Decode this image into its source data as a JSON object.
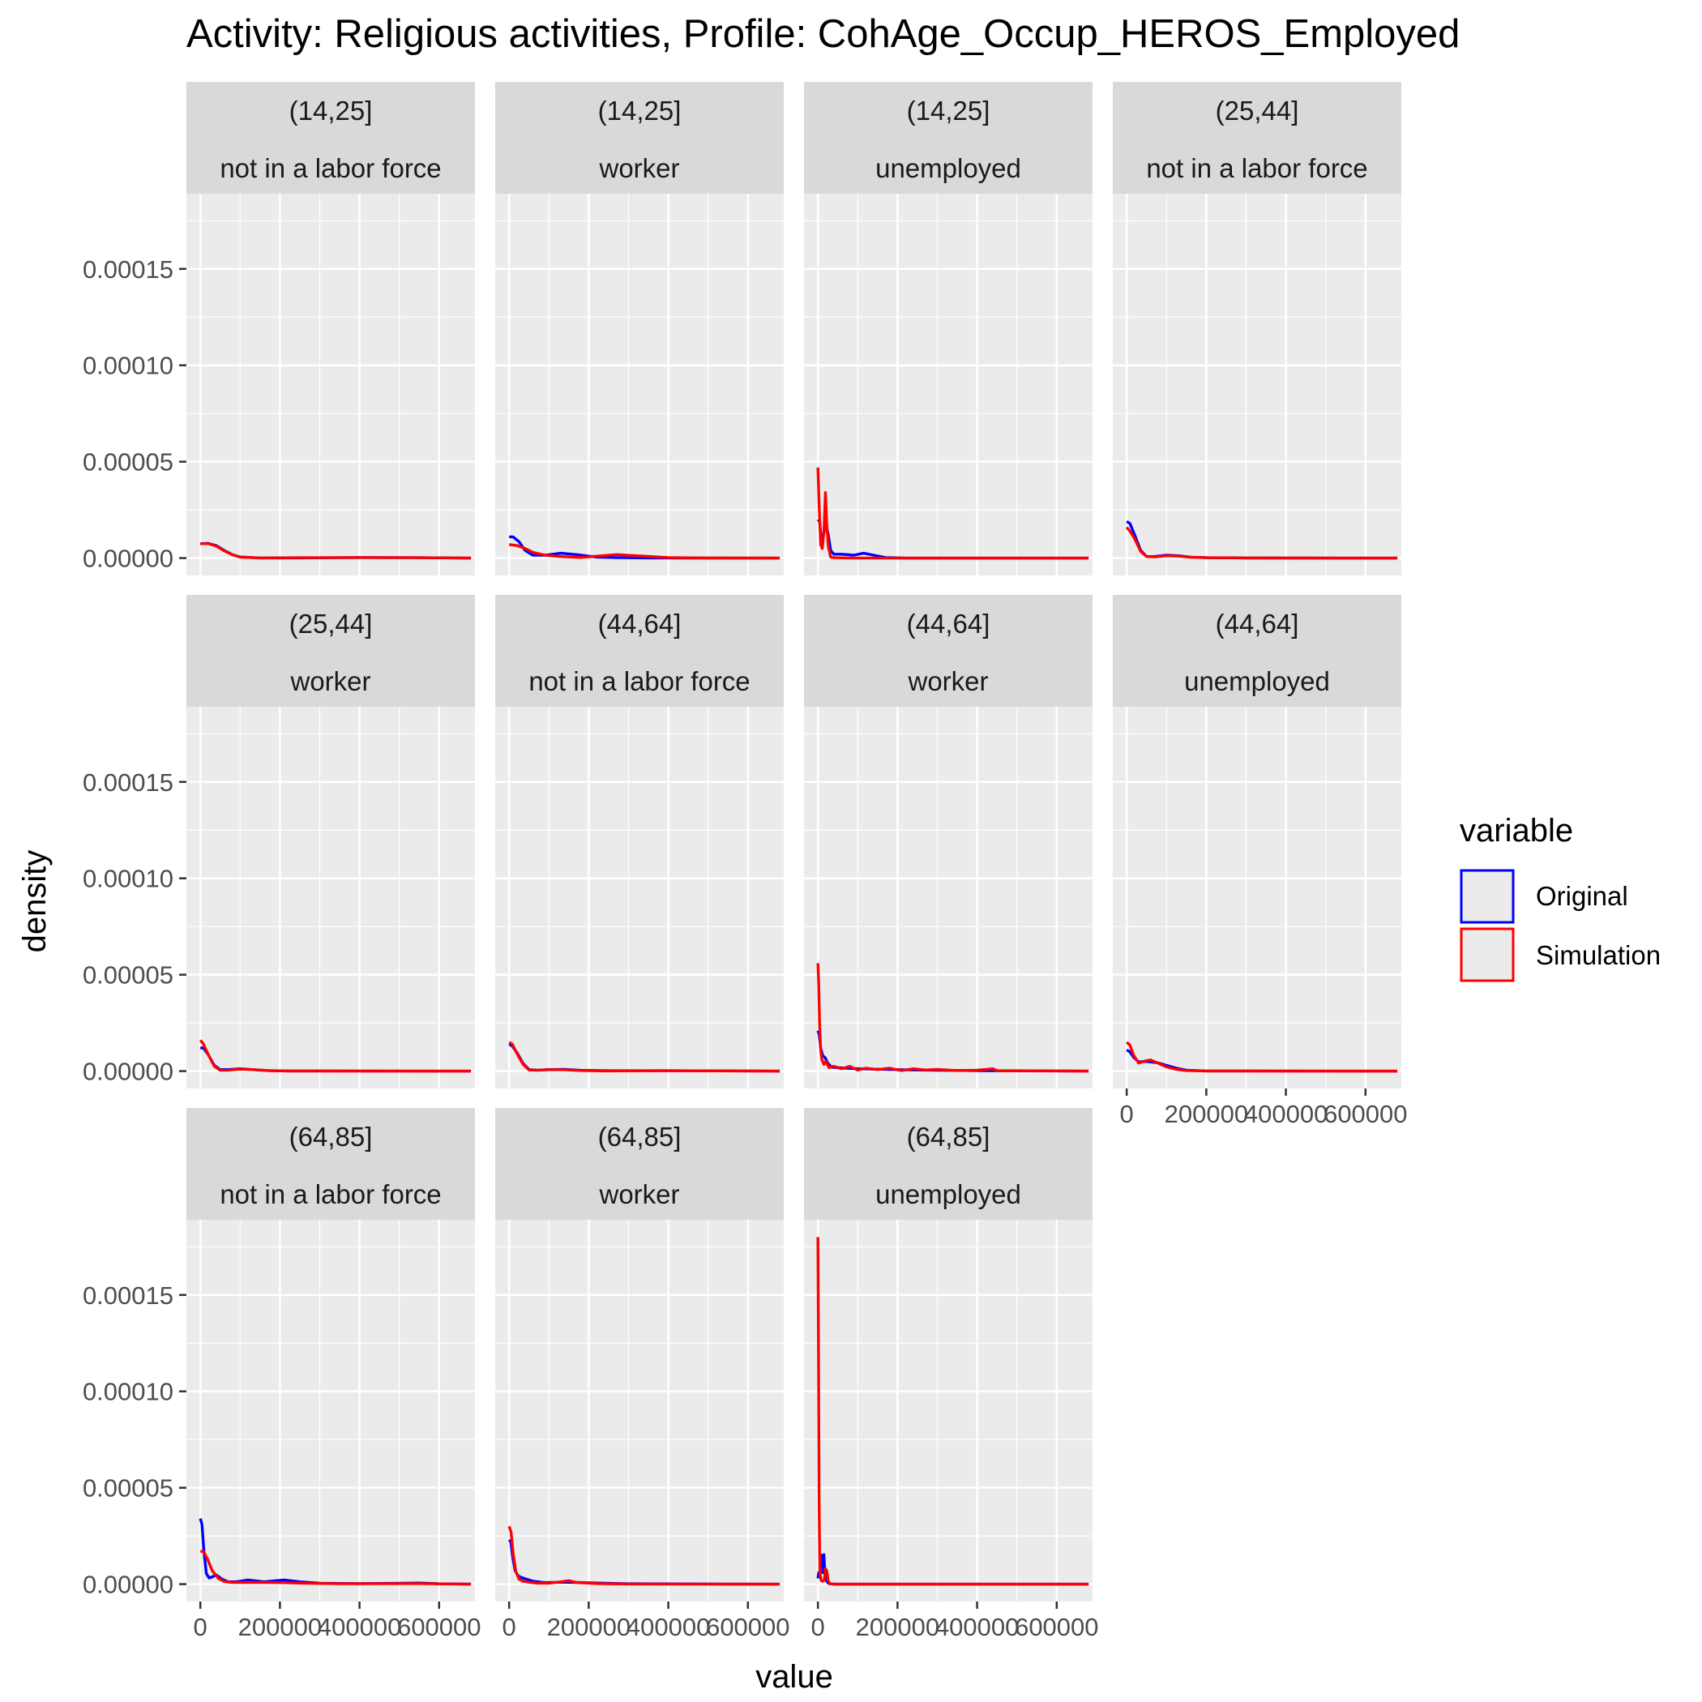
{
  "chart_data": {
    "type": "line",
    "title": "Activity: Religious activities, Profile: CohAge_Occup_HEROS_Employed",
    "xlabel": "value",
    "ylabel": "density",
    "xlim": [
      -35000,
      690000
    ],
    "ylim": [
      -9e-06,
      0.000189
    ],
    "x_ticks": [
      0,
      200000,
      400000,
      600000
    ],
    "x_tick_labels": [
      "0",
      "200000",
      "400000",
      "600000"
    ],
    "y_ticks": [
      0,
      5e-05,
      0.0001,
      0.00015
    ],
    "y_tick_labels": [
      "0.00000",
      "0.00005",
      "0.00010",
      "0.00015"
    ],
    "grid": true,
    "legend": {
      "title": "variable",
      "placement": "right",
      "entries": [
        {
          "name": "Original",
          "color": "#0000ff"
        },
        {
          "name": "Simulation",
          "color": "#ff0000"
        }
      ]
    },
    "panels": [
      {
        "age": "(14,25]",
        "occupation": "not in a labor force",
        "series": [
          {
            "name": "Original",
            "x": [
              0,
              20000,
              40000,
              60000,
              80000,
              100000,
              150000,
              250000,
              400000,
              550000,
              680000
            ],
            "y": [
              7.5e-06,
              7.6e-06,
              6.5e-06,
              4e-06,
              1.8e-06,
              6e-07,
              1e-07,
              1e-07,
              3e-07,
              2e-07,
              0
            ]
          },
          {
            "name": "Simulation",
            "x": [
              0,
              20000,
              40000,
              60000,
              80000,
              100000,
              150000,
              250000,
              400000,
              550000,
              680000
            ],
            "y": [
              7.5e-06,
              7.5e-06,
              6.2e-06,
              3.8e-06,
              1.7e-06,
              5e-07,
              1e-07,
              2e-07,
              3e-07,
              2e-07,
              0
            ]
          }
        ]
      },
      {
        "age": "(14,25]",
        "occupation": "worker",
        "series": [
          {
            "name": "Original",
            "x": [
              0,
              10000,
              25000,
              40000,
              60000,
              90000,
              130000,
              170000,
              220000,
              280000,
              350000,
              450000,
              680000
            ],
            "y": [
              1.1e-05,
              1.1e-05,
              8.5e-06,
              4e-06,
              1.5e-06,
              1.5e-06,
              2.5e-06,
              1.8e-06,
              5e-07,
              2e-07,
              1e-07,
              0,
              0
            ]
          },
          {
            "name": "Simulation",
            "x": [
              0,
              20000,
              40000,
              60000,
              90000,
              130000,
              180000,
              220000,
              270000,
              320000,
              400000,
              500000,
              680000
            ],
            "y": [
              7e-06,
              6.5e-06,
              5e-06,
              3e-06,
              1.5e-06,
              8e-07,
              3e-07,
              1e-06,
              1.8e-06,
              1.2e-06,
              3e-07,
              1e-07,
              0
            ]
          }
        ]
      },
      {
        "age": "(14,25]",
        "occupation": "unemployed",
        "series": [
          {
            "name": "Original",
            "x": [
              0,
              4000,
              9000,
              14000,
              20000,
              26000,
              32000,
              40000,
              60000,
              90000,
              115000,
              140000,
              170000,
              220000,
              680000
            ],
            "y": [
              2e-05,
              1.9e-05,
              9e-06,
              1.2e-05,
              1.8e-05,
              1.2e-05,
              4e-06,
              2e-06,
              2e-06,
              1.5e-06,
              2.5e-06,
              1.5e-06,
              3e-07,
              0,
              0
            ]
          },
          {
            "name": "Simulation",
            "x": [
              0,
              3000,
              7000,
              11000,
              15000,
              19000,
              22000,
              26000,
              32000,
              40000,
              80000,
              680000
            ],
            "y": [
              4.7e-05,
              2.7e-05,
              7e-06,
              5e-06,
              1.4e-05,
              3.4e-05,
              1.8e-05,
              6e-06,
              6e-07,
              2e-07,
              0,
              0
            ]
          }
        ]
      },
      {
        "age": "(25,44]",
        "occupation": "not in a labor force",
        "series": [
          {
            "name": "Original",
            "x": [
              0,
              8000,
              20000,
              35000,
              50000,
              70000,
              100000,
              130000,
              160000,
              200000,
              300000,
              680000
            ],
            "y": [
              1.9e-05,
              1.8e-05,
              1.2e-05,
              4e-06,
              8e-07,
              8e-07,
              1.5e-06,
              1.2e-06,
              5e-07,
              2e-07,
              1e-07,
              0
            ]
          },
          {
            "name": "Simulation",
            "x": [
              0,
              8000,
              20000,
              35000,
              50000,
              70000,
              100000,
              130000,
              160000,
              200000,
              300000,
              680000
            ],
            "y": [
              1.6e-05,
              1.4e-05,
              1e-05,
              3.5e-06,
              8e-07,
              6e-07,
              1.2e-06,
              1e-06,
              4e-07,
              2e-07,
              1e-07,
              0
            ]
          }
        ]
      },
      {
        "age": "(25,44]",
        "occupation": "worker",
        "series": [
          {
            "name": "Original",
            "x": [
              0,
              8000,
              20000,
              35000,
              50000,
              70000,
              100000,
              130000,
              170000,
              220000,
              300000,
              680000
            ],
            "y": [
              1.2e-05,
              1.2e-05,
              8.5e-06,
              3e-06,
              8e-07,
              8e-07,
              1.2e-06,
              8e-07,
              3e-07,
              1e-07,
              1e-07,
              0
            ]
          },
          {
            "name": "Simulation",
            "x": [
              0,
              8000,
              20000,
              35000,
              50000,
              70000,
              100000,
              130000,
              170000,
              220000,
              300000,
              680000
            ],
            "y": [
              1.6e-05,
              1.4e-05,
              8.5e-06,
              2.5e-06,
              4e-07,
              5e-07,
              1e-06,
              8e-07,
              3e-07,
              1e-07,
              1e-07,
              0
            ]
          }
        ]
      },
      {
        "age": "(44,64]",
        "occupation": "not in a labor force",
        "series": [
          {
            "name": "Original",
            "x": [
              0,
              8000,
              20000,
              35000,
              50000,
              70000,
              100000,
              140000,
              180000,
              250000,
              400000,
              680000
            ],
            "y": [
              1.4e-05,
              1.3e-05,
              9.5e-06,
              4e-06,
              8e-07,
              5e-07,
              8e-07,
              9e-07,
              4e-07,
              2e-07,
              2e-07,
              0
            ]
          },
          {
            "name": "Simulation",
            "x": [
              0,
              8000,
              20000,
              35000,
              50000,
              70000,
              100000,
              140000,
              180000,
              250000,
              400000,
              680000
            ],
            "y": [
              1.5e-05,
              1.4e-05,
              9e-06,
              3.5e-06,
              6e-07,
              4e-07,
              7e-07,
              7e-07,
              3e-07,
              1e-07,
              2e-07,
              0
            ]
          }
        ]
      },
      {
        "age": "(44,64]",
        "occupation": "worker",
        "series": [
          {
            "name": "Original",
            "x": [
              0,
              3000,
              7000,
              12000,
              18000,
              25000,
              35000,
              50000,
              70000,
              100000,
              140000,
              190000,
              240000,
              300000,
              400000,
              680000
            ],
            "y": [
              2.1e-05,
              1.9e-05,
              1.2e-05,
              8e-06,
              7e-06,
              4e-06,
              2e-06,
              1.8e-06,
              1.5e-06,
              1.2e-06,
              1e-06,
              8e-07,
              6e-07,
              4e-07,
              2e-07,
              0
            ]
          },
          {
            "name": "Simulation",
            "x": [
              0,
              2000,
              4000,
              7000,
              10000,
              15000,
              20000,
              28000,
              40000,
              60000,
              80000,
              100000,
              120000,
              150000,
              180000,
              210000,
              240000,
              270000,
              300000,
              350000,
              400000,
              440000,
              450000,
              500000,
              680000
            ],
            "y": [
              5.6e-05,
              4.5e-05,
              2.5e-05,
              1.1e-05,
              6e-06,
              3.5e-06,
              5e-06,
              1.8e-06,
              2.5e-06,
              1.2e-06,
              2.5e-06,
              5e-07,
              1.5e-06,
              8e-07,
              1.5e-06,
              3e-07,
              1.2e-06,
              6e-07,
              9e-07,
              3e-07,
              5e-07,
              1.2e-06,
              2e-07,
              2e-07,
              0
            ]
          }
        ]
      },
      {
        "age": "(44,64]",
        "occupation": "unemployed",
        "series": [
          {
            "name": "Original",
            "x": [
              0,
              8000,
              18000,
              30000,
              45000,
              60000,
              80000,
              100000,
              125000,
              150000,
              200000,
              680000
            ],
            "y": [
              1.1e-05,
              1e-05,
              7e-06,
              4.8e-06,
              5e-06,
              4.8e-06,
              4.2e-06,
              3e-06,
              1.5e-06,
              5e-07,
              1e-07,
              0
            ]
          },
          {
            "name": "Simulation",
            "x": [
              0,
              8000,
              18000,
              30000,
              45000,
              60000,
              80000,
              100000,
              125000,
              150000,
              200000,
              680000
            ],
            "y": [
              1.5e-05,
              1.35e-05,
              8e-06,
              4.2e-06,
              5.2e-06,
              5.8e-06,
              4e-06,
              2.2e-06,
              9e-07,
              3e-07,
              1e-07,
              0
            ]
          }
        ]
      },
      {
        "age": "(64,85]",
        "occupation": "not in a labor force",
        "series": [
          {
            "name": "Original",
            "x": [
              0,
              4000,
              9000,
              15000,
              22000,
              30000,
              40000,
              55000,
              70000,
              90000,
              120000,
              160000,
              210000,
              250000,
              300000,
              400000,
              550000,
              600000,
              680000
            ],
            "y": [
              3.4e-05,
              3.1e-05,
              1.7e-05,
              5.5e-06,
              3.2e-06,
              3.8e-06,
              4.8e-06,
              2.5e-06,
              1.2e-06,
              1.2e-06,
              2.2e-06,
              1.2e-06,
              2.2e-06,
              1.2e-06,
              5e-07,
              3e-07,
              6e-07,
              2e-07,
              0
            ]
          },
          {
            "name": "Simulation",
            "x": [
              0,
              8000,
              18000,
              30000,
              45000,
              60000,
              80000,
              110000,
              150000,
              200000,
              250000,
              350000,
              550000,
              680000
            ],
            "y": [
              1.7e-05,
              1.7e-05,
              1.3e-05,
              7e-06,
              3e-06,
              1.4e-06,
              9e-07,
              9e-07,
              9e-07,
              8e-07,
              5e-07,
              2e-07,
              3e-07,
              0
            ]
          }
        ]
      },
      {
        "age": "(64,85]",
        "occupation": "worker",
        "series": [
          {
            "name": "Original",
            "x": [
              0,
              4000,
              9000,
              15000,
              22000,
              30000,
              40000,
              60000,
              90000,
              130000,
              170000,
              220000,
              300000,
              680000
            ],
            "y": [
              2.3e-05,
              2.2e-05,
              1.4e-05,
              7e-06,
              4.5e-06,
              3.5e-06,
              2.8e-06,
              1.5e-06,
              8e-07,
              1e-06,
              9e-07,
              6e-07,
              2e-07,
              0
            ]
          },
          {
            "name": "Simulation",
            "x": [
              0,
              5000,
              10000,
              17000,
              25000,
              35000,
              50000,
              70000,
              100000,
              130000,
              150000,
              170000,
              220000,
              300000,
              680000
            ],
            "y": [
              3e-05,
              2.7e-05,
              1.6e-05,
              6.5e-06,
              2.5e-06,
              1.5e-06,
              1e-06,
              5e-07,
              5e-07,
              1.2e-06,
              1.8e-06,
              8e-07,
              3e-07,
              1e-07,
              0
            ]
          }
        ]
      },
      {
        "age": "(64,85]",
        "occupation": "unemployed",
        "series": [
          {
            "name": "Original",
            "x": [
              0,
              2000,
              5000,
              9000,
              12000,
              15000,
              18000,
              22000,
              26000,
              30000,
              40000,
              680000
            ],
            "y": [
              3e-06,
              6e-06,
              4e-06,
              1.5e-05,
              6e-06,
              1.53e-05,
              4e-06,
              1.5e-06,
              5e-07,
              2e-07,
              0,
              0
            ]
          },
          {
            "name": "Simulation",
            "x": [
              0,
              1500,
              3000,
              5000,
              8000,
              12000,
              16000,
              19000,
              22000,
              26000,
              30000,
              40000,
              680000
            ],
            "y": [
              0.00018,
              0.00012,
              4e-05,
              6e-06,
              2e-06,
              1.5e-06,
              2e-06,
              8e-06,
              7e-06,
              1.5e-06,
              3e-07,
              0,
              0
            ]
          }
        ]
      }
    ]
  }
}
